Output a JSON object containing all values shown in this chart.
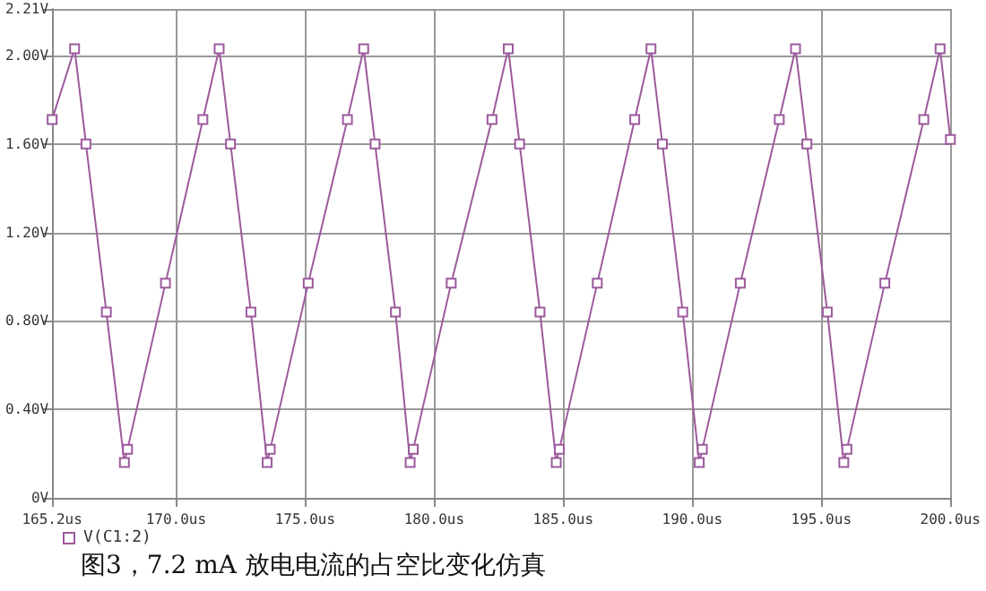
{
  "chart_data": {
    "type": "line",
    "title": "图3，7.2 mA 放电电流的占空比变化仿真",
    "x": [
      165.2,
      166.07,
      166.51,
      167.3,
      168.0,
      168.12,
      169.59,
      171.04,
      171.67,
      172.11,
      172.9,
      173.53,
      173.65,
      175.12,
      176.64,
      177.27,
      177.71,
      178.5,
      179.07,
      179.19,
      180.66,
      182.24,
      182.87,
      183.31,
      184.1,
      184.73,
      184.85,
      186.32,
      187.77,
      188.4,
      188.84,
      189.63,
      190.27,
      190.39,
      191.86,
      193.37,
      194.0,
      194.44,
      195.23,
      195.87,
      195.99,
      197.46,
      198.97,
      199.6,
      200.0
    ],
    "series": [
      {
        "name": "V(C1:2)",
        "color": "#9c5a9c",
        "values": [
          1.71,
          2.03,
          1.6,
          0.84,
          0.16,
          0.22,
          0.97,
          1.71,
          2.03,
          1.6,
          0.84,
          0.16,
          0.22,
          0.97,
          1.71,
          2.03,
          1.6,
          0.84,
          0.16,
          0.22,
          0.97,
          1.71,
          2.03,
          1.6,
          0.84,
          0.16,
          0.22,
          0.97,
          1.71,
          2.03,
          1.6,
          0.84,
          0.16,
          0.22,
          0.97,
          1.71,
          2.03,
          1.6,
          0.84,
          0.16,
          0.22,
          0.97,
          1.71,
          2.03,
          1.62
        ]
      }
    ],
    "xlim": [
      165.2,
      200.0
    ],
    "xticks": [
      {
        "value": 165.2,
        "label": "165.2us"
      },
      {
        "value": 170,
        "label": "170.0us"
      },
      {
        "value": 175,
        "label": "175.0us"
      },
      {
        "value": 180,
        "label": "180.0us"
      },
      {
        "value": 185,
        "label": "185.0us"
      },
      {
        "value": 190,
        "label": "190.0us"
      },
      {
        "value": 195,
        "label": "195.0us"
      },
      {
        "value": 200,
        "label": "200.0us"
      }
    ],
    "ylim": [
      0,
      2.21
    ],
    "yticks": [
      {
        "value": 0,
        "label": "0V"
      },
      {
        "value": 0.4,
        "label": "0.40V"
      },
      {
        "value": 0.8,
        "label": "0.80V"
      },
      {
        "value": 1.2,
        "label": "1.20V"
      },
      {
        "value": 1.6,
        "label": "1.60V"
      },
      {
        "value": 2.0,
        "label": "2.00V"
      },
      {
        "value": 2.21,
        "label": "2.21V"
      }
    ],
    "grid": true,
    "legend": "bottom left",
    "marker": "square",
    "line_style": "solid"
  }
}
